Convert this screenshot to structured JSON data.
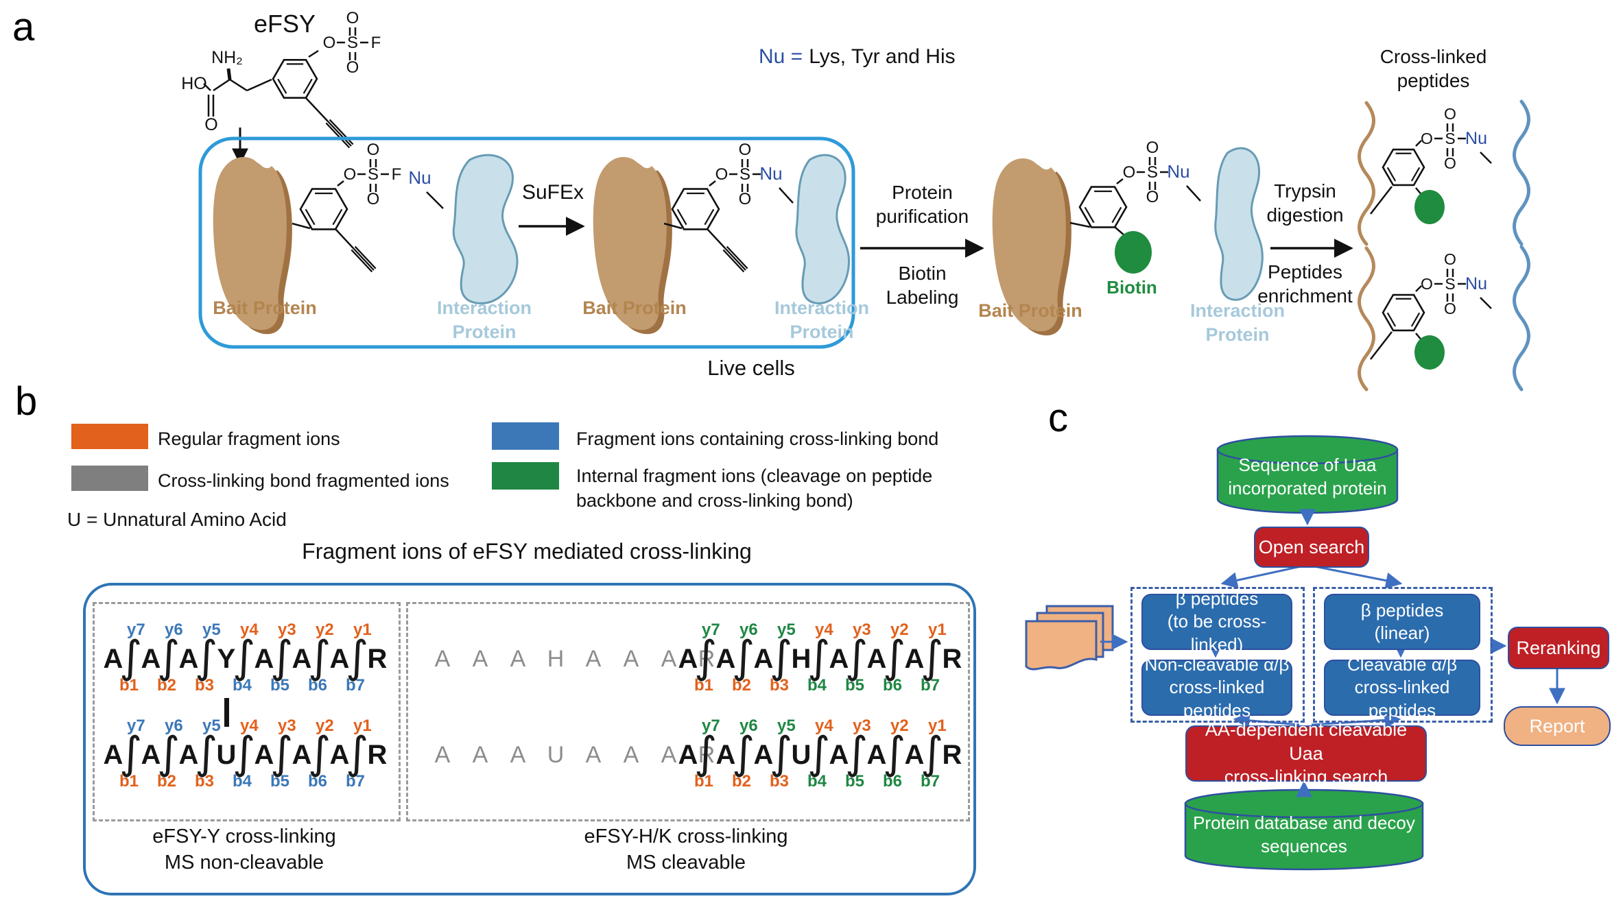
{
  "colors": {
    "orange": "#E2611C",
    "gray": "#7F7F7F",
    "blue": "#3C78B8",
    "green": "#1F8743",
    "flow_green": "#2AA24B",
    "flow_red": "#BE2026",
    "flow_blue": "#2B6CAD",
    "peach": "#F0B183",
    "arrow_blue": "#3E6FC1",
    "flow_stroke": "#2E4FA0",
    "dash_blue": "#3A5EA8",
    "big_box_border": "#2E74B5",
    "live_cells_border": "#2E9AD8",
    "dash_gray": "#9A9A9A",
    "bait_light": "#C29B6F",
    "bait_dark": "#A07243",
    "int_fill": "#C9E0EA",
    "int_stroke": "#679BB4",
    "bait_label": "#B3854F",
    "int_label": "#A6C9DB",
    "biotin_green": "#1F8C3F",
    "nu_blue": "#2B4EA2",
    "wavy_brown": "#B5895B",
    "wavy_blue": "#5F93BE"
  },
  "panel_labels": {
    "a": "a",
    "b": "b",
    "c": "c"
  },
  "panel_a": {
    "efsy_title": "eFSY",
    "atoms": {
      "O": "O",
      "S": "S",
      "F": "F",
      "Nu": "Nu",
      "HO": "HO",
      "NH2": "NH₂"
    },
    "nu_definition": {
      "blue_part": "Nu =",
      "black_part": "Lys, Tyr and His"
    },
    "sufex": "SuFEx",
    "live_cells": "Live cells",
    "bait_protein": "Bait Protein",
    "interaction_protein": [
      "Interaction",
      "Protein"
    ],
    "purification_steps": [
      "Protein",
      "purification",
      "Biotin",
      "Labeling"
    ],
    "digestion_steps": [
      "Trypsin",
      "digestion",
      "Peptides",
      "enrichment"
    ],
    "crosslinked_title": [
      "Cross-linked",
      "peptides"
    ],
    "biotin": "Biotin"
  },
  "panel_b": {
    "legend": {
      "regular": "Regular fragment ions",
      "bond_fragmented": "Cross-linking bond fragmented ions",
      "containing": "Fragment ions containing cross-linking bond",
      "internal_line1": "Internal fragment ions (cleavage on peptide",
      "internal_line2": "backbone and cross-linking bond)"
    },
    "u_note": "U = Unnatural Amino Acid",
    "title": "Fragment ions of eFSY mediated cross-linking",
    "left_box": {
      "peptides": [
        {
          "residues": [
            "A",
            "A",
            "A",
            "Y",
            "A",
            "A",
            "A",
            "R"
          ],
          "y_ions": [
            [
              "y7",
              "blue"
            ],
            [
              "y6",
              "blue"
            ],
            [
              "y5",
              "blue"
            ],
            [
              "y4",
              "orange"
            ],
            [
              "y3",
              "orange"
            ],
            [
              "y2",
              "orange"
            ],
            [
              "y1",
              "orange"
            ]
          ],
          "b_ions": [
            [
              "b1",
              "orange"
            ],
            [
              "b2",
              "orange"
            ],
            [
              "b3",
              "orange"
            ],
            [
              "b4",
              "blue"
            ],
            [
              "b5",
              "blue"
            ],
            [
              "b6",
              "blue"
            ],
            [
              "b7",
              "blue"
            ]
          ]
        },
        {
          "residues": [
            "A",
            "A",
            "A",
            "U",
            "A",
            "A",
            "A",
            "R"
          ],
          "y_ions": [
            [
              "y7",
              "blue"
            ],
            [
              "y6",
              "blue"
            ],
            [
              "y5",
              "blue"
            ],
            [
              "y4",
              "orange"
            ],
            [
              "y3",
              "orange"
            ],
            [
              "y2",
              "orange"
            ],
            [
              "y1",
              "orange"
            ]
          ],
          "b_ions": [
            [
              "b1",
              "orange"
            ],
            [
              "b2",
              "orange"
            ],
            [
              "b3",
              "orange"
            ],
            [
              "b4",
              "blue"
            ],
            [
              "b5",
              "blue"
            ],
            [
              "b6",
              "blue"
            ],
            [
              "b7",
              "blue"
            ]
          ]
        }
      ],
      "caption": [
        "eFSY-Y cross-linking",
        "MS non-cleavable"
      ]
    },
    "right_box": {
      "gray_peptides": [
        [
          "A",
          "A",
          "A",
          "H",
          "A",
          "A",
          "A",
          "R"
        ],
        [
          "A",
          "A",
          "A",
          "U",
          "A",
          "A",
          "A",
          "R"
        ]
      ],
      "peptides": [
        {
          "residues": [
            "A",
            "A",
            "A",
            "H",
            "A",
            "A",
            "A",
            "R"
          ],
          "y_ions": [
            [
              "y7",
              "green"
            ],
            [
              "y6",
              "green"
            ],
            [
              "y5",
              "green"
            ],
            [
              "y4",
              "orange"
            ],
            [
              "y3",
              "orange"
            ],
            [
              "y2",
              "orange"
            ],
            [
              "y1",
              "orange"
            ]
          ],
          "b_ions": [
            [
              "b1",
              "orange"
            ],
            [
              "b2",
              "orange"
            ],
            [
              "b3",
              "orange"
            ],
            [
              "b4",
              "green"
            ],
            [
              "b5",
              "green"
            ],
            [
              "b6",
              "green"
            ],
            [
              "b7",
              "green"
            ]
          ]
        },
        {
          "residues": [
            "A",
            "A",
            "A",
            "U",
            "A",
            "A",
            "A",
            "R"
          ],
          "y_ions": [
            [
              "y7",
              "green"
            ],
            [
              "y6",
              "green"
            ],
            [
              "y5",
              "green"
            ],
            [
              "y4",
              "orange"
            ],
            [
              "y3",
              "orange"
            ],
            [
              "y2",
              "orange"
            ],
            [
              "y1",
              "orange"
            ]
          ],
          "b_ions": [
            [
              "b1",
              "orange"
            ],
            [
              "b2",
              "orange"
            ],
            [
              "b3",
              "orange"
            ],
            [
              "b4",
              "green"
            ],
            [
              "b5",
              "green"
            ],
            [
              "b6",
              "green"
            ],
            [
              "b7",
              "green"
            ]
          ]
        }
      ],
      "caption": [
        "eFSY-H/K cross-linking",
        "MS cleavable"
      ]
    }
  },
  "panel_c": {
    "db_top": [
      "Sequence of Uaa",
      "incorporated protein"
    ],
    "open_search": "Open search",
    "beta_crosslink": [
      "β peptides",
      "(to be cross-linked)"
    ],
    "beta_linear": [
      "β peptides",
      "(linear)"
    ],
    "noncleavable": [
      "Non-cleavable α/β",
      "cross-linked peptides"
    ],
    "cleavable": [
      "Cleavable α/β",
      "cross-linked peptides"
    ],
    "reranking": "Reranking",
    "report": "Report",
    "aa_search": [
      "AA-dependent cleavable Uaa",
      "cross-linking search"
    ],
    "db_bottom": [
      "Protein database and decoy",
      "sequences"
    ]
  }
}
